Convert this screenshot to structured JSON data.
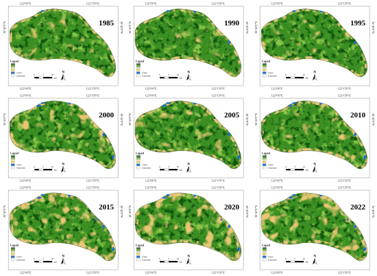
{
  "panels": [
    {
      "year": "1985"
    },
    {
      "year": "1990"
    },
    {
      "year": "1995"
    },
    {
      "year": "2000"
    },
    {
      "year": "2005"
    },
    {
      "year": "2010"
    },
    {
      "year": "2015"
    },
    {
      "year": "2020"
    },
    {
      "year": "2022"
    }
  ],
  "labels": {
    "lon_west": "122°0'0\"E",
    "lon_east": "122°15'0\"E",
    "lat": "36°45'0\"N",
    "legend_title": "Legend",
    "water": "water",
    "boundary": "boundary",
    "scale": [
      "0",
      "5",
      "10"
    ],
    "scale_unit": "km",
    "north": "N"
  },
  "colors": {
    "forest": "#3c8f22",
    "forest_dark": "#0e5a12",
    "forest_light": "#8cc84b",
    "bare": "#e9c77c",
    "water": "#1d6fd8",
    "boundary": "#ffffff",
    "frame": "#8a8a8a"
  },
  "icons": {
    "north_arrow": "north-arrow-icon"
  }
}
